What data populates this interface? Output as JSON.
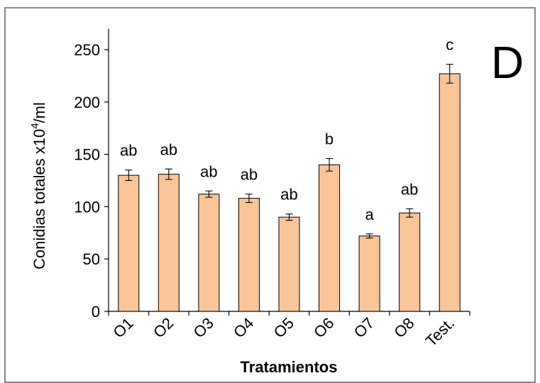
{
  "chart_data": {
    "type": "bar",
    "panel_label": "D",
    "categories": [
      "O1",
      "O2",
      "O3",
      "O4",
      "O5",
      "O6",
      "O7",
      "O8",
      "Test."
    ],
    "values": [
      130,
      131,
      112,
      108,
      90,
      140,
      72,
      94,
      227
    ],
    "errors": [
      5,
      5,
      3,
      4,
      3,
      6,
      2,
      4,
      9
    ],
    "significance": [
      "ab",
      "ab",
      "ab",
      "ab",
      "ab",
      "b",
      "a",
      "ab",
      "c"
    ],
    "ylabel_main": "Conidias totales x10",
    "ylabel_sup": "4",
    "ylabel_suffix": "/ml",
    "xlabel": "Tratamientos",
    "yticks": [
      0,
      50,
      100,
      150,
      200,
      250
    ],
    "ylim": [
      0,
      270
    ],
    "grid": false,
    "colors": {
      "bar_fill": "#f9c597",
      "bar_stroke": "#000000",
      "frame": "#8a8a8a"
    }
  }
}
